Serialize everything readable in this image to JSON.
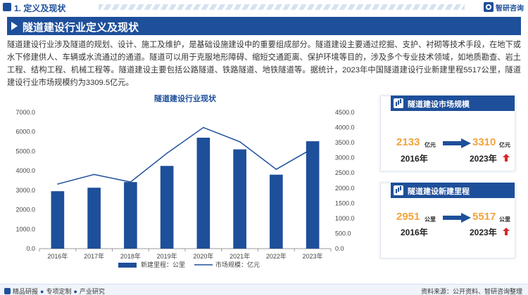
{
  "header": {
    "section_title": "1. 定义及现状",
    "logo_text": "智研咨询",
    "banner_title": "隧道建设行业定义及现状"
  },
  "intro": "隧道建设行业涉及隧道的规划、设计、施工及维护，是基础设施建设中的重要组成部分。隧道建设主要通过挖掘、支护、衬砌等技术手段，在地下或水下修建供人、车辆或水流通过的通道。隧道可以用于克服地形障碍、缩短交通距离、保护环境等目的，涉及多个专业技术领域，如地质勘查、岩土工程、结构工程、机械工程等。隧道建设主要包括公路隧道、铁路隧道、地铁隧道等。据统计，2023年中国隧道建设行业新建里程5517公里，隧道建设行业市场规模约为3309.5亿元。",
  "chart_data": {
    "type": "bar",
    "title": "隧道建设行业现状",
    "categories": [
      "2016年",
      "2017年",
      "2018年",
      "2019年",
      "2020年",
      "2021年",
      "2022年",
      "2023年"
    ],
    "series": [
      {
        "name": "新建里程：公里",
        "type": "bar",
        "axis": "left",
        "values": [
          2951,
          3130,
          3420,
          4250,
          5700,
          5100,
          3800,
          5517
        ]
      },
      {
        "name": "市场规模：亿元",
        "type": "line",
        "axis": "right",
        "values": [
          2133,
          2450,
          2200,
          3150,
          4000,
          3530,
          2620,
          3309.5
        ]
      }
    ],
    "ylim_left": [
      0,
      7000
    ],
    "yticks_left": [
      "0.0",
      "1000.0",
      "2000.0",
      "3000.0",
      "4000.0",
      "5000.0",
      "6000.0",
      "7000.0"
    ],
    "ylim_right": [
      0,
      4500
    ],
    "yticks_right": [
      "0.0",
      "500.0",
      "1000.0",
      "1500.0",
      "2000.0",
      "2500.0",
      "3000.0",
      "3500.0",
      "4000.0",
      "4500.0"
    ],
    "legend_position": "bottom",
    "grid": false,
    "colors": {
      "bar": "#1e4f9a",
      "line": "#1e4f9a"
    }
  },
  "cards": [
    {
      "title": "隧道建设市场规模",
      "from_value": "2133",
      "from_unit": "亿元",
      "from_year": "2016年",
      "to_value": "3310",
      "to_unit": "亿元",
      "to_year": "2023年"
    },
    {
      "title": "隧道建设新建里程",
      "from_value": "2951",
      "from_unit": "公里",
      "from_year": "2016年",
      "to_value": "5517",
      "to_unit": "公里",
      "to_year": "2023年"
    }
  ],
  "footer": {
    "items": [
      "精品研报",
      "专项定制",
      "产业研究"
    ],
    "source": "资料来源：公开资料、智研咨询整理"
  },
  "colors": {
    "brand": "#1e4f9a",
    "highlight": "#f2a33a",
    "up_arrow": "#d9272e"
  }
}
